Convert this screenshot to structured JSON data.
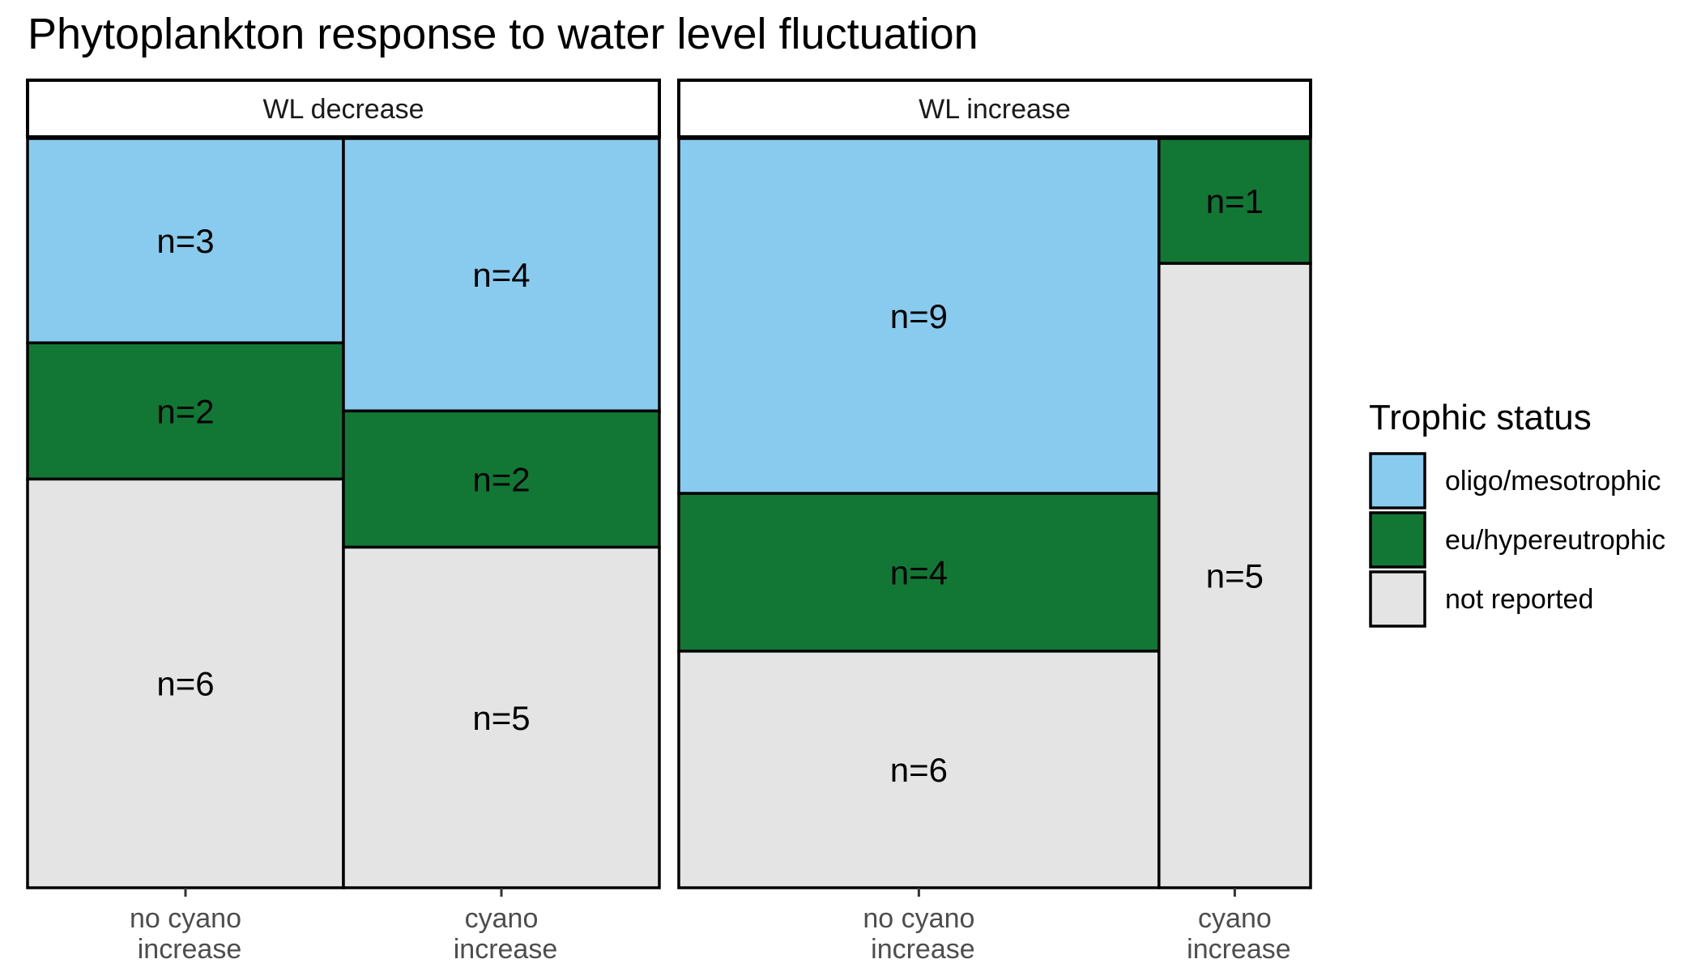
{
  "chart_data": {
    "type": "mosaic",
    "title": "Phytoplankton response to water level fluctuation",
    "facets": [
      {
        "label": "WL decrease",
        "columns": [
          {
            "label": [
              "no cyano",
              "increase"
            ],
            "counts": [
              3,
              2,
              6
            ]
          },
          {
            "label": [
              "cyano",
              "increase"
            ],
            "counts": [
              4,
              2,
              5
            ]
          }
        ]
      },
      {
        "label": "WL increase",
        "columns": [
          {
            "label": [
              "no cyano",
              "increase"
            ],
            "counts": [
              9,
              4,
              6
            ]
          },
          {
            "label": [
              "cyano",
              "increase"
            ],
            "counts": [
              0,
              1,
              5
            ]
          }
        ]
      }
    ],
    "legend": {
      "title": "Trophic status",
      "position": "right",
      "items": [
        {
          "label": "oligo/mesotrophic",
          "color": "#89CBEE"
        },
        {
          "label": "eu/hypereutrophic",
          "color": "#127735"
        },
        {
          "label": "not reported",
          "color": "#E4E4E4"
        }
      ]
    },
    "count_prefix": "n="
  }
}
